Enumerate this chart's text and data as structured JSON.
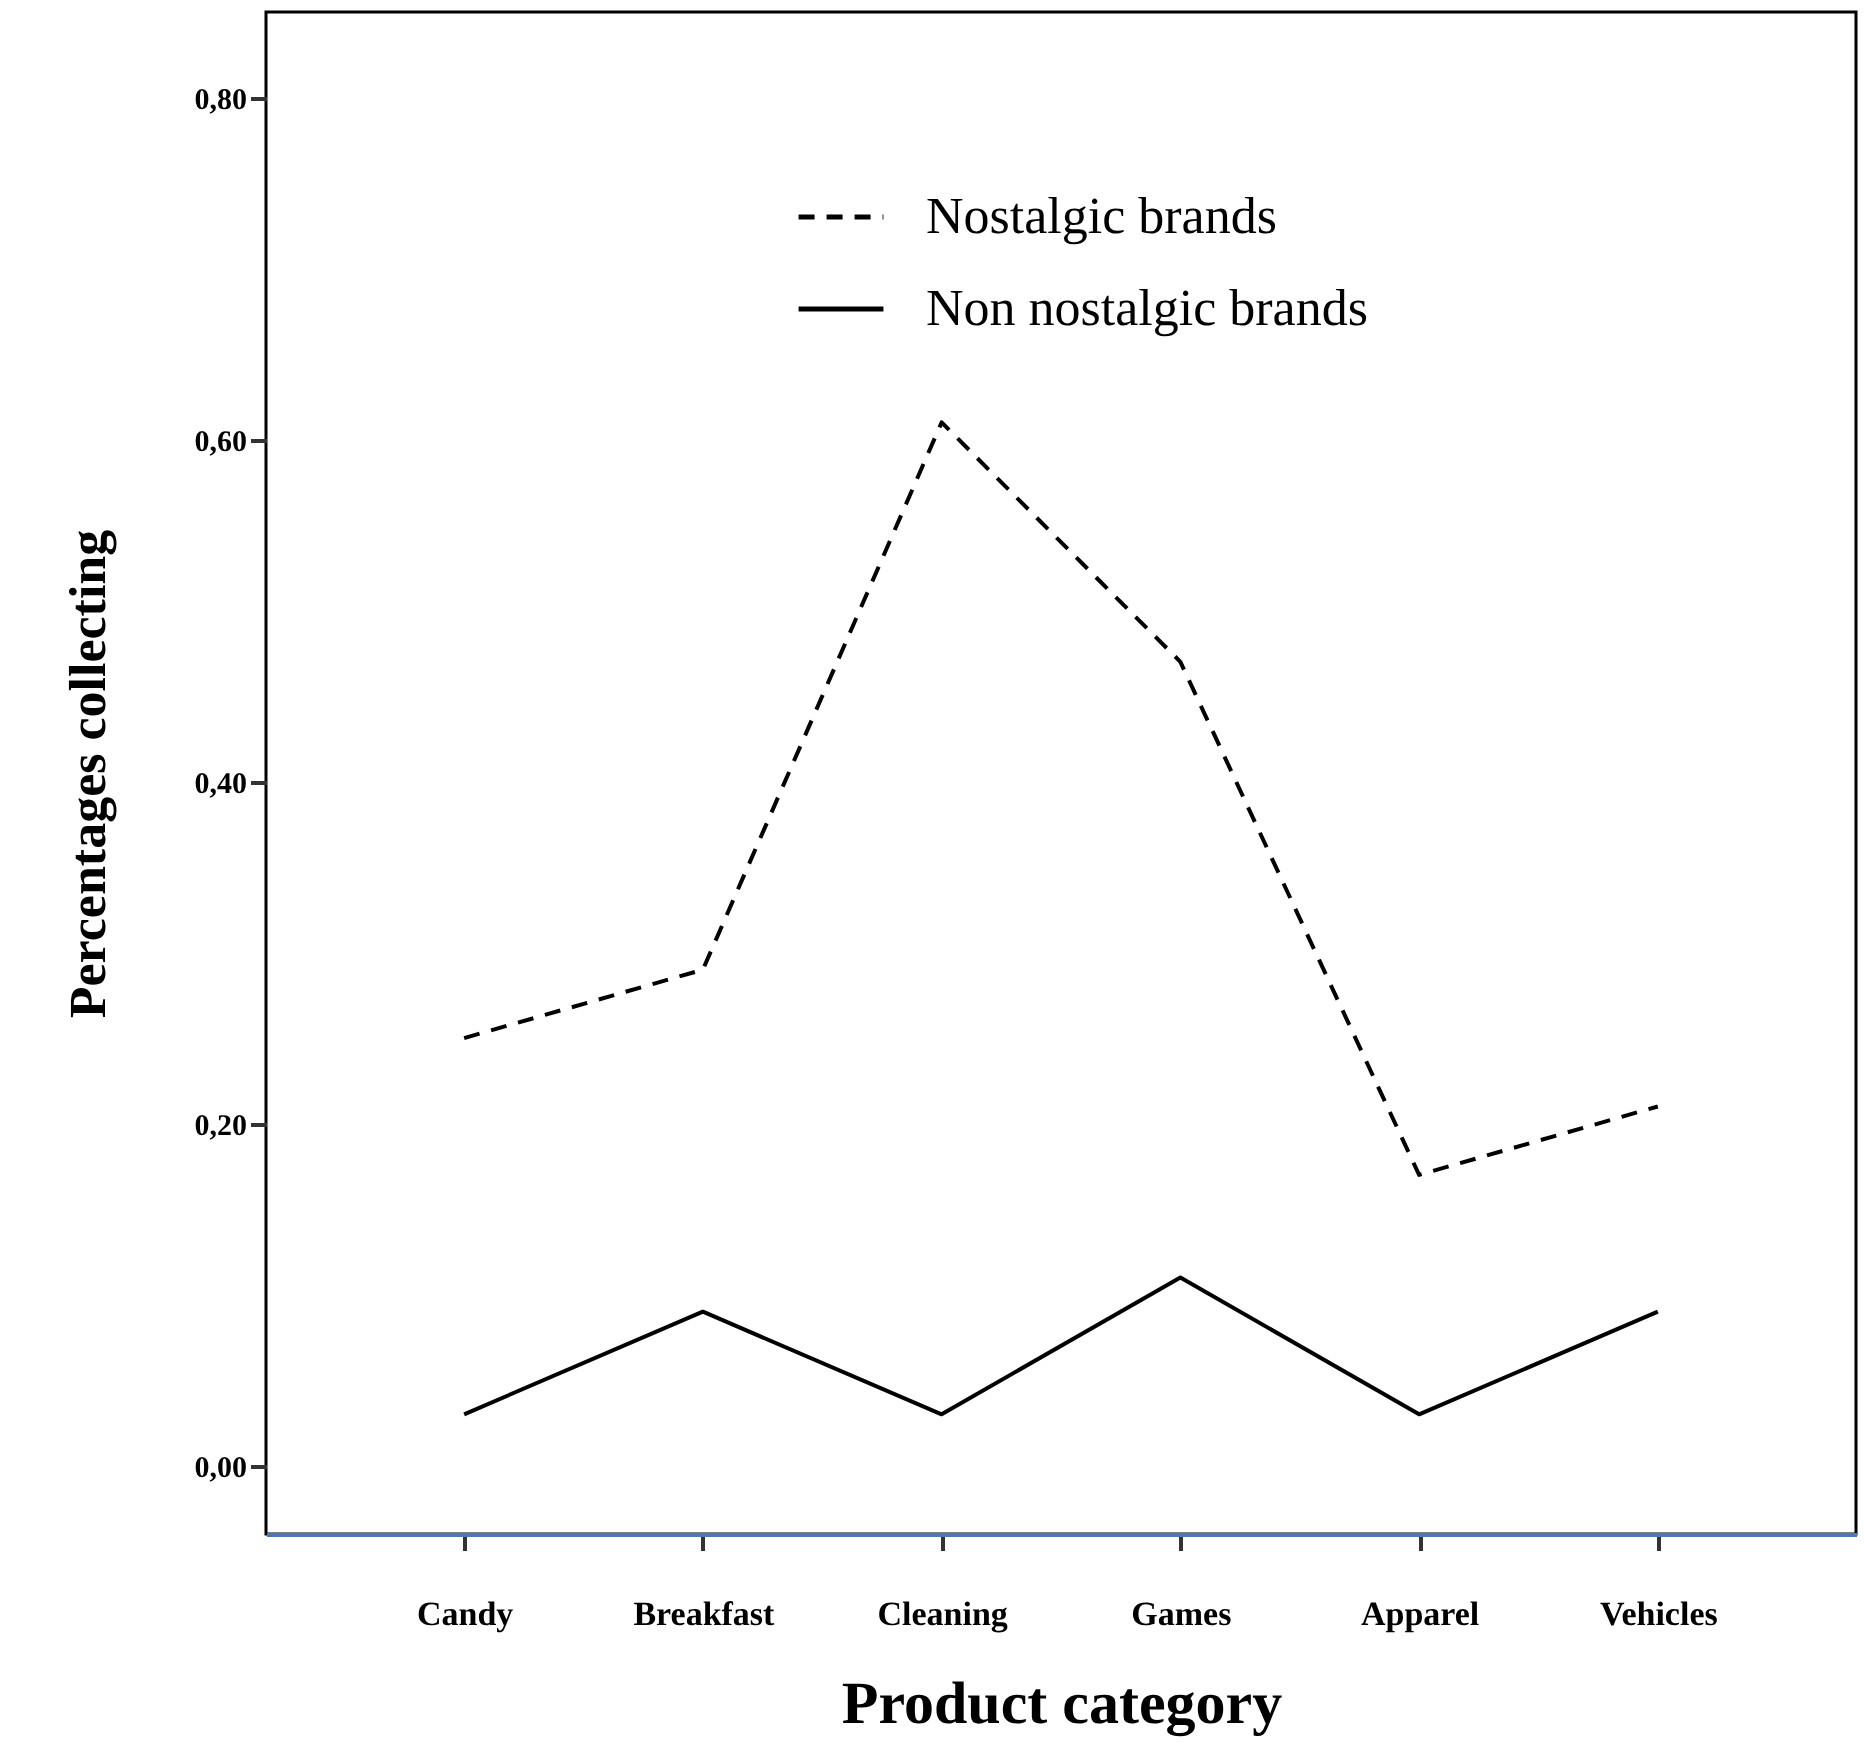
{
  "chart_data": {
    "type": "line",
    "xlabel": "Product category",
    "ylabel": "Percentages collecting",
    "categories": [
      "Candy",
      "Breakfast",
      "Cleaning",
      "Games",
      "Apparel",
      "Vehicles"
    ],
    "series": [
      {
        "name": "Nostalgic brands",
        "color": "#000000",
        "line_style": "dashed",
        "values": [
          0.25,
          0.29,
          0.61,
          0.47,
          0.17,
          0.21
        ]
      },
      {
        "name": "Non nostalgic brands",
        "color": "#000000",
        "line_style": "solid",
        "values": [
          0.03,
          0.09,
          0.03,
          0.11,
          0.03,
          0.09
        ]
      }
    ],
    "ylim": [
      -0.04,
      0.85
    ],
    "yticks": [
      {
        "value": 0,
        "label": "0,00"
      },
      {
        "value": 0.2,
        "label": "0,20"
      },
      {
        "value": 0.4,
        "label": "0,40"
      },
      {
        "value": 0.6,
        "label": "0,60"
      },
      {
        "value": 0.8,
        "label": "0,80"
      }
    ],
    "grid": false,
    "legend": "top",
    "marker": "none"
  }
}
